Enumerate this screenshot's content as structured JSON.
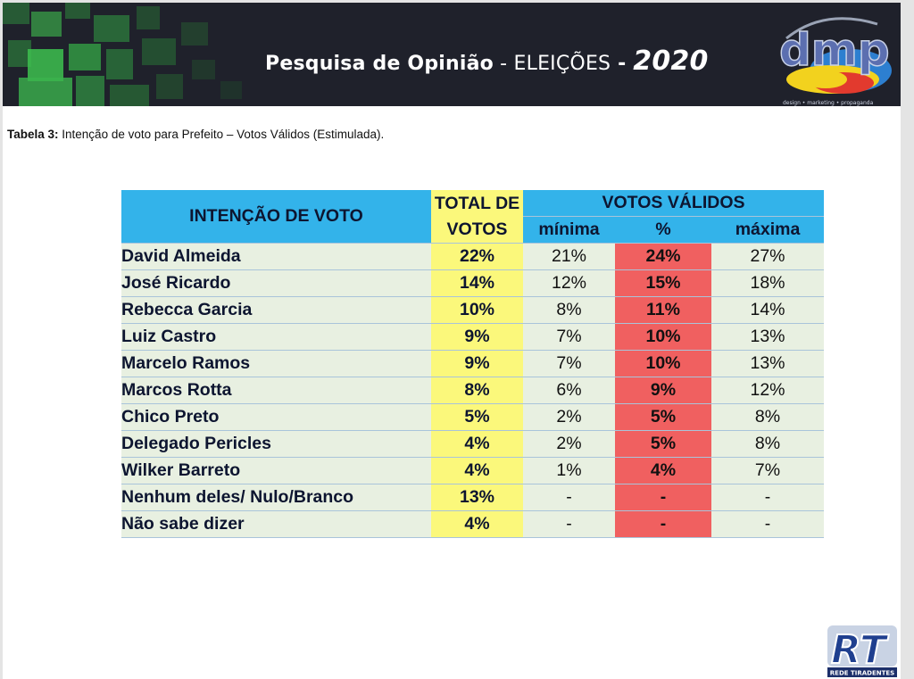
{
  "banner": {
    "title_bold": "Pesquisa de Opinião",
    "title_sep": " - ",
    "title_light": "ELEIÇÕES",
    "title_dash": " - ",
    "title_year": "2020",
    "logo_text": "dmp",
    "logo_tagline": "design • marketing • propaganda"
  },
  "caption": {
    "label": "Tabela 3:",
    "text": " Intenção de voto para Prefeito – Votos Válidos (Estimulada)."
  },
  "table": {
    "head_intent": "INTENÇÃO DE VOTO",
    "head_total": "TOTAL DE VOTOS",
    "head_valid": "VOTOS VÁLIDOS",
    "head_min": "mínima",
    "head_pct": "%",
    "head_max": "máxima",
    "rows": [
      {
        "name": "David Almeida",
        "total": "22%",
        "min": "21%",
        "pct": "24%",
        "max": "27%"
      },
      {
        "name": "José Ricardo",
        "total": "14%",
        "min": "12%",
        "pct": "15%",
        "max": "18%"
      },
      {
        "name": "Rebecca Garcia",
        "total": "10%",
        "min": "8%",
        "pct": "11%",
        "max": "14%"
      },
      {
        "name": "Luiz Castro",
        "total": "9%",
        "min": "7%",
        "pct": "10%",
        "max": "13%"
      },
      {
        "name": "Marcelo Ramos",
        "total": "9%",
        "min": "7%",
        "pct": "10%",
        "max": "13%"
      },
      {
        "name": "Marcos Rotta",
        "total": "8%",
        "min": "6%",
        "pct": "9%",
        "max": "12%"
      },
      {
        "name": "Chico Preto",
        "total": "5%",
        "min": "2%",
        "pct": "5%",
        "max": "8%"
      },
      {
        "name": "Delegado Pericles",
        "total": "4%",
        "min": "2%",
        "pct": "5%",
        "max": "8%"
      },
      {
        "name": "Wilker Barreto",
        "total": "4%",
        "min": "1%",
        "pct": "4%",
        "max": "7%"
      },
      {
        "name": "Nenhum deles/ Nulo/Branco",
        "total": "13%",
        "min": "-",
        "pct": "-",
        "max": "-"
      },
      {
        "name": "Não sabe dizer",
        "total": "4%",
        "min": "-",
        "pct": "-",
        "max": "-"
      }
    ]
  },
  "watermark": {
    "letters": "RT",
    "caption": "REDE TIRADENTES"
  },
  "colors": {
    "banner_bg": "#1f212b",
    "header_blue": "#33b3ea",
    "total_yellow": "#fbf87b",
    "pct_red": "#f06060",
    "row_green": "#e8f0e1"
  }
}
